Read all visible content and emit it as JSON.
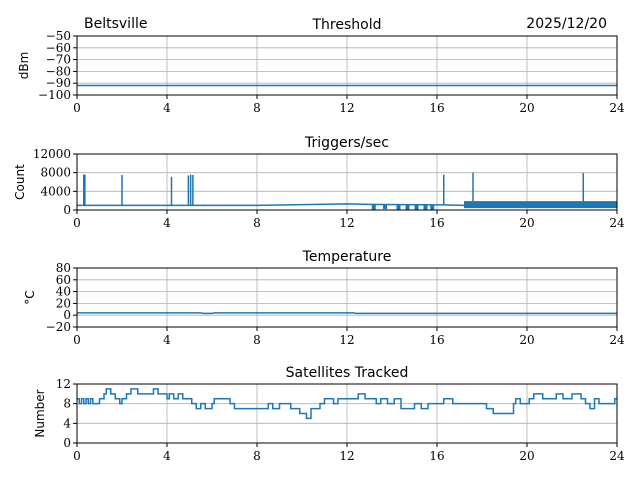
{
  "header": {
    "station": "Beltsville",
    "date": "2025/12/20"
  },
  "chart_data": [
    {
      "type": "line",
      "title": "Threshold",
      "ylabel": "dBm",
      "xlim": [
        0,
        24
      ],
      "ylim": [
        -100,
        -50
      ],
      "xticks": [
        0,
        4,
        8,
        12,
        16,
        20,
        24
      ],
      "yticks": [
        -100,
        -90,
        -80,
        -70,
        -60,
        -50
      ],
      "ytick_labels": [
        "−100",
        "−90",
        "−80",
        "−70",
        "−60",
        "−50"
      ],
      "grid": true,
      "x": [
        0,
        24
      ],
      "y": [
        -92,
        -92
      ]
    },
    {
      "type": "line",
      "title": "Triggers/sec",
      "ylabel": "Count",
      "xlim": [
        0,
        24
      ],
      "ylim": [
        0,
        12000
      ],
      "xticks": [
        0,
        4,
        8,
        12,
        16,
        20,
        24
      ],
      "yticks": [
        0,
        4000,
        8000,
        12000
      ],
      "ytick_labels": [
        "0",
        "4000",
        "8000",
        "12000"
      ],
      "grid": true,
      "baseline": [
        [
          0,
          1000
        ],
        [
          8,
          1000
        ],
        [
          12,
          1300
        ],
        [
          13,
          1200
        ],
        [
          16.3,
          1100
        ],
        [
          17.2,
          1000
        ]
      ],
      "spikes": [
        [
          0.3,
          7600
        ],
        [
          0.35,
          7600
        ],
        [
          2.0,
          7500
        ],
        [
          4.2,
          7100
        ],
        [
          4.95,
          7400
        ],
        [
          5.05,
          7600
        ],
        [
          5.15,
          7500
        ],
        [
          16.3,
          7600
        ],
        [
          17.6,
          8000
        ],
        [
          22.5,
          7900
        ]
      ],
      "dropouts": [
        [
          13.1,
          0
        ],
        [
          13.6,
          200
        ],
        [
          14.2,
          0
        ],
        [
          14.6,
          100
        ],
        [
          15.0,
          0
        ],
        [
          15.4,
          0
        ],
        [
          15.7,
          100
        ]
      ],
      "band": {
        "from": 17.2,
        "to": 24,
        "min": 400,
        "max": 1900
      }
    },
    {
      "type": "line",
      "title": "Temperature",
      "ylabel": "°C",
      "xlim": [
        0,
        24
      ],
      "ylim": [
        -20,
        80
      ],
      "xticks": [
        0,
        4,
        8,
        12,
        16,
        20,
        24
      ],
      "yticks": [
        -20,
        0,
        20,
        40,
        60,
        80
      ],
      "ytick_labels": [
        "−20",
        "0",
        "20",
        "40",
        "60",
        "80"
      ],
      "grid": true,
      "x": [
        0,
        5.5,
        5.6,
        6.0,
        6.1,
        12.3,
        12.4,
        24
      ],
      "y": [
        4,
        4,
        3,
        3,
        4,
        4,
        3,
        3
      ]
    },
    {
      "type": "line",
      "title": "Satellites Tracked",
      "ylabel": "Number",
      "xlim": [
        0,
        24
      ],
      "ylim": [
        0,
        12
      ],
      "xticks": [
        0,
        4,
        8,
        12,
        16,
        20,
        24
      ],
      "yticks": [
        0,
        4,
        8,
        12
      ],
      "ytick_labels": [
        "0",
        "4",
        "8",
        "12"
      ],
      "grid": true,
      "x": [
        0,
        0.1,
        0.2,
        0.3,
        0.4,
        0.5,
        0.6,
        0.7,
        1.0,
        1.2,
        1.3,
        1.5,
        1.7,
        1.9,
        2.0,
        2.2,
        2.4,
        2.7,
        3.4,
        3.6,
        4.0,
        4.1,
        4.3,
        4.5,
        4.7,
        5.1,
        5.3,
        5.5,
        5.7,
        6.0,
        6.1,
        6.8,
        7.0,
        7.4,
        8.5,
        8.7,
        9.0,
        9.5,
        9.9,
        10.2,
        10.4,
        10.8,
        11.0,
        11.4,
        11.6,
        12.2,
        12.5,
        12.8,
        13.3,
        13.5,
        13.8,
        14.1,
        14.4,
        14.8,
        15.0,
        15.3,
        15.6,
        16.0,
        16.3,
        16.7,
        18.0,
        18.2,
        18.5,
        19.4,
        19.5,
        19.7,
        20.1,
        20.3,
        20.7,
        21.0,
        21.3,
        21.6,
        22.0,
        22.4,
        22.6,
        22.8,
        23.0,
        23.2,
        23.9,
        24
      ],
      "y": [
        9,
        8,
        9,
        8,
        9,
        8,
        9,
        8,
        9,
        10,
        11,
        10,
        9,
        8,
        9,
        10,
        11,
        10,
        11,
        10,
        9,
        10,
        9,
        10,
        9,
        8,
        7,
        8,
        7,
        8,
        9,
        8,
        7,
        7,
        8,
        7,
        8,
        7,
        6,
        5,
        7,
        8,
        9,
        8,
        9,
        9,
        10,
        9,
        8,
        9,
        8,
        9,
        7,
        7,
        8,
        7,
        8,
        8,
        9,
        8,
        8,
        7,
        6,
        8,
        9,
        8,
        9,
        10,
        9,
        9,
        10,
        9,
        10,
        9,
        8,
        7,
        9,
        8,
        9,
        9
      ]
    }
  ]
}
